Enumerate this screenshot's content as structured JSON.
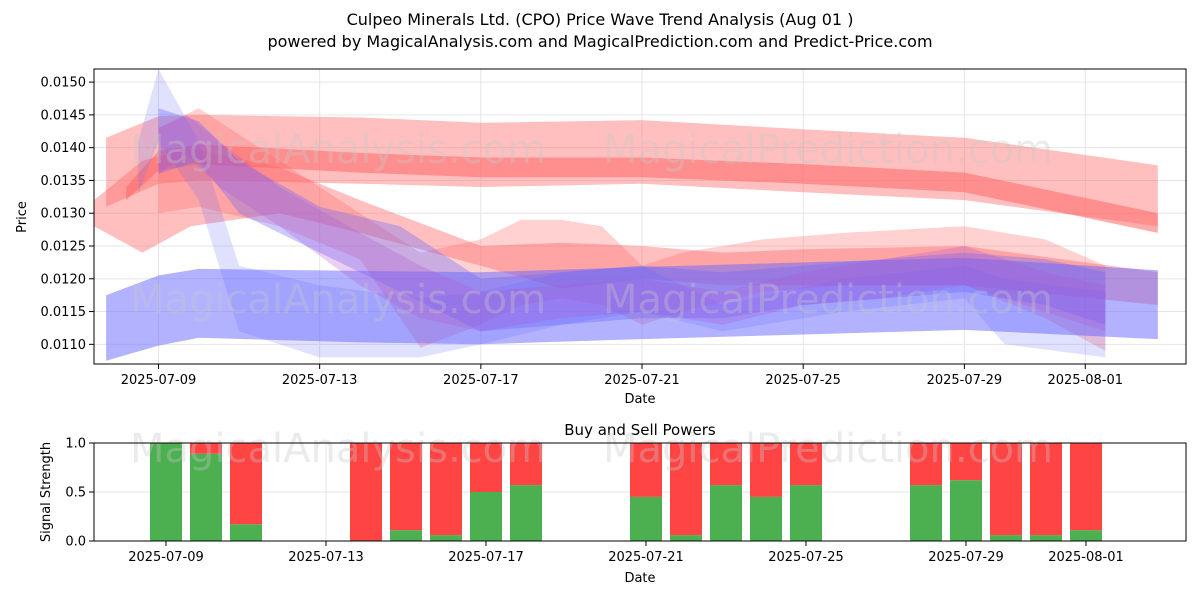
{
  "title": "Culpeo Minerals Ltd. (CPO) Price Wave Trend Analysis (Aug 01 )",
  "subtitle": "powered by MagicalAnalysis.com and MagicalPrediction.com and Predict-Price.com",
  "watermarks": [
    "MagicalAnalysis.com",
    "MagicalPrediction.com"
  ],
  "colors": {
    "red_band": "#ff6666",
    "blue_band": "#6666ff",
    "buy": "#4caf50",
    "sell": "#ff4444",
    "grid": "#e6e6e6"
  },
  "chart_data": [
    {
      "type": "line",
      "name": "price-wave-chart",
      "ylabel": "Price",
      "xlabel": "Date",
      "ylim": [
        0.0107,
        0.0152
      ],
      "xlim": [
        -0.6,
        26.5
      ],
      "x_origin_date": "2025-07-08",
      "yticks": [
        "0.0110",
        "0.0115",
        "0.0120",
        "0.0125",
        "0.0130",
        "0.0135",
        "0.0140",
        "0.0145",
        "0.0150"
      ],
      "ytick_values": [
        0.011,
        0.0115,
        0.012,
        0.0125,
        0.013,
        0.0135,
        0.014,
        0.0145,
        0.015
      ],
      "xticks": [
        "2025-07-09",
        "2025-07-13",
        "2025-07-17",
        "2025-07-21",
        "2025-07-25",
        "2025-07-29",
        "2025-08-01"
      ],
      "xtick_values": [
        1,
        5,
        9,
        13,
        17,
        21,
        24
      ],
      "bands": [
        {
          "name": "red-upper-wide",
          "color": "red",
          "opacity": 0.42,
          "x": [
            -0.3,
            1,
            2,
            6,
            9,
            13,
            17,
            21,
            25.8
          ],
          "upper": [
            0.01415,
            0.01448,
            0.0145,
            0.01446,
            0.01438,
            0.01442,
            0.01428,
            0.01415,
            0.01373
          ],
          "lower": [
            0.0131,
            0.01345,
            0.0135,
            0.01345,
            0.0134,
            0.01345,
            0.01332,
            0.0132,
            0.0128
          ]
        },
        {
          "name": "red-trend-line",
          "color": "red",
          "opacity": 0.55,
          "x": [
            0.2,
            1,
            2,
            6,
            9,
            13,
            17,
            21,
            25.8
          ],
          "upper": [
            0.0134,
            0.01395,
            0.01405,
            0.01392,
            0.01385,
            0.01385,
            0.01375,
            0.01362,
            0.013
          ],
          "lower": [
            0.0132,
            0.01365,
            0.01375,
            0.01362,
            0.01355,
            0.01355,
            0.01345,
            0.01332,
            0.0127
          ]
        },
        {
          "name": "red-mid-wave",
          "color": "red",
          "opacity": 0.42,
          "x": [
            -0.6,
            0.6,
            1.8,
            4,
            6,
            9,
            11,
            13,
            15,
            17,
            21,
            25.8
          ],
          "upper": [
            0.0132,
            0.0138,
            0.014,
            0.0137,
            0.0132,
            0.0125,
            0.01255,
            0.0125,
            0.0124,
            0.01245,
            0.0125,
            0.0121
          ],
          "lower": [
            0.0128,
            0.0124,
            0.0128,
            0.013,
            0.0127,
            0.0122,
            0.01185,
            0.012,
            0.0119,
            0.0119,
            0.0119,
            0.0116
          ]
        },
        {
          "name": "red-wave-2",
          "color": "red",
          "opacity": 0.3,
          "x": [
            1,
            2,
            4,
            6,
            7.5,
            9,
            10,
            11,
            12,
            13,
            14,
            16,
            18,
            21,
            23,
            24.5
          ],
          "upper": [
            0.0143,
            0.0146,
            0.0138,
            0.013,
            0.0124,
            0.0126,
            0.0129,
            0.0129,
            0.0128,
            0.0122,
            0.0124,
            0.0126,
            0.0127,
            0.0128,
            0.0126,
            0.0122
          ],
          "lower": [
            0.013,
            0.0131,
            0.0128,
            0.0123,
            0.01095,
            0.0113,
            0.0116,
            0.0117,
            0.0116,
            0.0113,
            0.0115,
            0.0118,
            0.0119,
            0.0119,
            0.0114,
            0.0109
          ]
        },
        {
          "name": "blue-lower-wide",
          "color": "blue",
          "opacity": 0.5,
          "x": [
            -0.3,
            1,
            2,
            6,
            9,
            13,
            17,
            21,
            25.8
          ],
          "upper": [
            0.01175,
            0.01205,
            0.01215,
            0.01212,
            0.0121,
            0.01218,
            0.01225,
            0.01232,
            0.01213
          ],
          "lower": [
            0.01075,
            0.01098,
            0.0111,
            0.01103,
            0.011,
            0.01108,
            0.01115,
            0.01122,
            0.01108
          ]
        },
        {
          "name": "blue-mid-wave",
          "color": "blue",
          "opacity": 0.35,
          "x": [
            1,
            2,
            3,
            5,
            7,
            9,
            11,
            13,
            15,
            17,
            19,
            21,
            23,
            24.5
          ],
          "upper": [
            0.0146,
            0.0144,
            0.0138,
            0.0131,
            0.0128,
            0.012,
            0.0121,
            0.0122,
            0.0121,
            0.0122,
            0.0123,
            0.0124,
            0.0123,
            0.0121
          ],
          "lower": [
            0.0136,
            0.0138,
            0.013,
            0.0124,
            0.0118,
            0.0112,
            0.0113,
            0.0114,
            0.0114,
            0.0116,
            0.0117,
            0.0118,
            0.0116,
            0.0113
          ]
        },
        {
          "name": "blue-spike",
          "color": "blue",
          "opacity": 0.2,
          "x": [
            0.5,
            1,
            2,
            3,
            5,
            7.5,
            9,
            11,
            13,
            15,
            18,
            21,
            22,
            24.5
          ],
          "upper": [
            0.0141,
            0.0152,
            0.0141,
            0.0122,
            0.0119,
            0.0117,
            0.0118,
            0.0121,
            0.0122,
            0.0116,
            0.012,
            0.0122,
            0.012,
            0.0118
          ],
          "lower": [
            0.0133,
            0.0141,
            0.0132,
            0.0112,
            0.0108,
            0.0108,
            0.011,
            0.0113,
            0.0115,
            0.0112,
            0.0115,
            0.0117,
            0.011,
            0.0108
          ]
        },
        {
          "name": "purple-wave",
          "color": "purple",
          "opacity": 0.28,
          "x": [
            1,
            1.7,
            2.5,
            4,
            6,
            7.5,
            9,
            11,
            13,
            15,
            17,
            19,
            21,
            23,
            24.5
          ],
          "upper": [
            0.0143,
            0.0145,
            0.0141,
            0.0134,
            0.0127,
            0.0122,
            0.0118,
            0.0119,
            0.012,
            0.0118,
            0.0121,
            0.0123,
            0.0125,
            0.0121,
            0.0119
          ],
          "lower": [
            0.0136,
            0.0139,
            0.0134,
            0.0128,
            0.0119,
            0.0114,
            0.0112,
            0.0114,
            0.0115,
            0.0113,
            0.0116,
            0.0117,
            0.0119,
            0.0115,
            0.0112
          ]
        }
      ]
    },
    {
      "type": "bar",
      "name": "buy-sell-chart",
      "title": "Buy and Sell Powers",
      "ylabel": "Signal Strength",
      "xlabel": "Date",
      "ylim": [
        0,
        1.0
      ],
      "xlim": [
        -0.8,
        26.5
      ],
      "yticks": [
        "0.0",
        "0.5",
        "1.0"
      ],
      "ytick_values": [
        0,
        0.5,
        1.0
      ],
      "xticks": [
        "2025-07-09",
        "2025-07-13",
        "2025-07-17",
        "2025-07-21",
        "2025-07-25",
        "2025-07-29",
        "2025-08-01"
      ],
      "xtick_values": [
        1,
        5,
        9,
        13,
        17,
        21,
        24
      ],
      "categories": [
        "2025-07-09",
        "2025-07-10",
        "2025-07-11",
        "2025-07-14",
        "2025-07-15",
        "2025-07-16",
        "2025-07-17",
        "2025-07-18",
        "2025-07-21",
        "2025-07-22",
        "2025-07-23",
        "2025-07-24",
        "2025-07-25",
        "2025-07-28",
        "2025-07-29",
        "2025-07-30",
        "2025-07-31",
        "2025-08-01"
      ],
      "x": [
        1,
        2,
        3,
        6,
        7,
        8,
        9,
        10,
        13,
        14,
        15,
        16,
        17,
        20,
        21,
        22,
        23,
        24
      ],
      "series": [
        {
          "name": "Buy",
          "color": "buy",
          "values": [
            1.0,
            0.89,
            0.17,
            0.0,
            0.11,
            0.06,
            0.5,
            0.57,
            0.45,
            0.06,
            0.57,
            0.45,
            0.57,
            0.57,
            0.62,
            0.06,
            0.06,
            0.11
          ]
        },
        {
          "name": "Sell",
          "color": "sell",
          "values": [
            0.0,
            0.11,
            0.83,
            1.0,
            0.89,
            0.94,
            0.5,
            0.43,
            0.55,
            0.94,
            0.43,
            0.55,
            0.43,
            0.43,
            0.38,
            0.94,
            0.94,
            0.89
          ]
        }
      ]
    }
  ]
}
